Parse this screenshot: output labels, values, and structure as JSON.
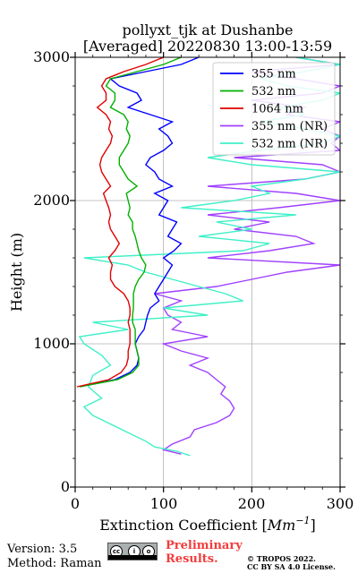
{
  "chart_data": {
    "type": "line",
    "title_line1": "pollyxt_tjk at Dushanbe",
    "title_line2": "[Averaged] 20220830 13:00-13:59",
    "xlabel": "Extinction Coefficient [",
    "xlabel_unit": "Mm",
    "xlabel_exp": "−1",
    "xlabel_end": "]",
    "ylabel": "Height (m)",
    "xlim": [
      0,
      300
    ],
    "ylim": [
      0,
      3000
    ],
    "x_ticks": [
      "0",
      "100",
      "200",
      "300"
    ],
    "y_ticks": [
      "0",
      "1000",
      "2000",
      "3000"
    ],
    "grid": true,
    "legend_position": "top-right",
    "series": [
      {
        "name": "355 nm",
        "color": "#0000ff",
        "height": [
          700,
          750,
          800,
          850,
          900,
          950,
          1000,
          1050,
          1100,
          1150,
          1200,
          1250,
          1300,
          1350,
          1400,
          1450,
          1500,
          1550,
          1600,
          1650,
          1700,
          1750,
          1800,
          1850,
          1900,
          1950,
          2000,
          2050,
          2100,
          2150,
          2200,
          2250,
          2300,
          2350,
          2400,
          2450,
          2500,
          2550,
          2600,
          2650,
          2700,
          2750,
          2800,
          2850,
          2900,
          2950,
          3000
        ],
        "values": [
          5,
          45,
          62,
          70,
          72,
          70,
          68,
          72,
          78,
          80,
          82,
          85,
          95,
          90,
          95,
          100,
          105,
          110,
          100,
          112,
          120,
          105,
          110,
          115,
          95,
          100,
          105,
          90,
          110,
          95,
          90,
          80,
          85,
          100,
          110,
          105,
          95,
          110,
          85,
          60,
          75,
          70,
          50,
          40,
          80,
          120,
          140
        ]
      },
      {
        "name": "532 nm",
        "color": "#00b000",
        "height": [
          700,
          750,
          800,
          850,
          900,
          950,
          1000,
          1050,
          1100,
          1150,
          1200,
          1250,
          1300,
          1350,
          1400,
          1450,
          1500,
          1550,
          1600,
          1650,
          1700,
          1750,
          1800,
          1850,
          1900,
          1950,
          2000,
          2050,
          2100,
          2150,
          2200,
          2250,
          2300,
          2350,
          2400,
          2450,
          2500,
          2550,
          2600,
          2650,
          2700,
          2750,
          2800,
          2850,
          2900,
          2950,
          3000
        ],
        "values": [
          5,
          48,
          65,
          72,
          72,
          70,
          68,
          68,
          68,
          65,
          65,
          66,
          66,
          66,
          68,
          72,
          78,
          80,
          75,
          72,
          70,
          68,
          65,
          65,
          60,
          62,
          60,
          58,
          70,
          60,
          55,
          50,
          50,
          55,
          60,
          62,
          58,
          60,
          55,
          40,
          45,
          45,
          35,
          40,
          70,
          100,
          120
        ]
      },
      {
        "name": "1064 nm",
        "color": "#e00000",
        "height": [
          700,
          750,
          800,
          850,
          900,
          950,
          1000,
          1050,
          1100,
          1150,
          1200,
          1250,
          1300,
          1350,
          1400,
          1450,
          1500,
          1550,
          1600,
          1650,
          1700,
          1750,
          1800,
          1850,
          1900,
          1950,
          2000,
          2050,
          2100,
          2150,
          2200,
          2250,
          2300,
          2350,
          2400,
          2450,
          2500,
          2550,
          2600,
          2650,
          2700,
          2750,
          2800,
          2850,
          2900,
          2950,
          3000
        ],
        "values": [
          2,
          38,
          52,
          58,
          60,
          60,
          62,
          62,
          62,
          60,
          62,
          62,
          60,
          55,
          45,
          40,
          40,
          42,
          38,
          45,
          50,
          45,
          40,
          38,
          40,
          38,
          35,
          32,
          40,
          35,
          30,
          28,
          30,
          35,
          40,
          42,
          38,
          40,
          35,
          25,
          35,
          35,
          30,
          35,
          55,
          80,
          100
        ]
      },
      {
        "name": "355 nm (NR)",
        "color": "#a040ff",
        "height": [
          230,
          260,
          300,
          350,
          400,
          450,
          500,
          550,
          600,
          650,
          700,
          750,
          800,
          850,
          900,
          950,
          1000,
          1050,
          1100,
          1150,
          1200,
          1250,
          1300,
          1350,
          1400,
          1450,
          1500,
          1550,
          1600,
          1650,
          1700,
          1750,
          1800,
          1850,
          1900,
          1950,
          2000,
          2050,
          2100,
          2150,
          2200,
          2250,
          2300,
          2350,
          2400,
          2450,
          2500,
          2550,
          2600,
          2650,
          2700,
          2750,
          2800,
          2850,
          2900,
          2950,
          3000
        ],
        "values": [
          120,
          100,
          110,
          130,
          135,
          160,
          175,
          180,
          175,
          165,
          170,
          160,
          150,
          130,
          150,
          120,
          100,
          150,
          110,
          120,
          105,
          100,
          120,
          90,
          160,
          200,
          240,
          300,
          150,
          220,
          270,
          250,
          180,
          220,
          150,
          230,
          300,
          250,
          150,
          260,
          300,
          280,
          180,
          300,
          290,
          300,
          280,
          300,
          240,
          260,
          200,
          280,
          300,
          250,
          200,
          300,
          250
        ]
      },
      {
        "name": "532 nm (NR)",
        "color": "#40f0c8",
        "height": [
          220,
          250,
          280,
          320,
          380,
          440,
          500,
          560,
          620,
          700,
          780,
          850,
          920,
          1000,
          1050,
          1100,
          1150,
          1200,
          1250,
          1300,
          1350,
          1400,
          1450,
          1500,
          1550,
          1600,
          1650,
          1700,
          1750,
          1800,
          1850,
          1900,
          1950,
          2000,
          2050,
          2100,
          2150,
          2200,
          2250,
          2300,
          2350,
          2400,
          2450,
          2500,
          2550,
          2600,
          2650,
          2700,
          2750,
          2800,
          2850,
          2900,
          2950,
          3000
        ],
        "values": [
          130,
          115,
          90,
          80,
          60,
          40,
          20,
          10,
          30,
          15,
          20,
          40,
          30,
          10,
          5,
          60,
          20,
          150,
          100,
          190,
          170,
          140,
          110,
          80,
          60,
          10,
          190,
          220,
          140,
          200,
          160,
          250,
          120,
          180,
          220,
          200,
          260,
          300,
          200,
          150,
          210,
          280,
          300,
          260,
          210,
          260,
          230,
          280,
          300,
          240,
          210,
          260,
          300,
          250
        ]
      }
    ]
  },
  "footer": {
    "version": "Version: 3.5",
    "method": "Method: Raman",
    "prelim_line1": "Preliminary",
    "prelim_line2": "Results.",
    "copyright_line1": "© TROPOS 2022.",
    "copyright_line2": "CC BY SA 4.0 License."
  }
}
